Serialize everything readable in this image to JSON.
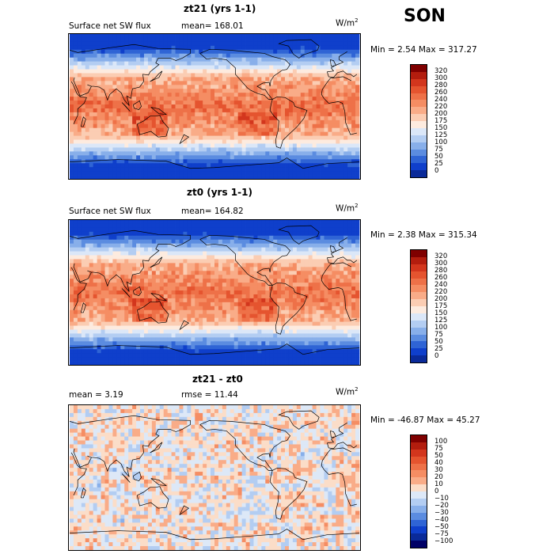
{
  "season": "SON",
  "panels": [
    {
      "title": "zt21 (yrs 1-1)",
      "left_label": "Surface net SW flux",
      "mean_text": "mean= 168.01",
      "unit": "W/m",
      "unit_exp": "2",
      "stats": "Min =    2.54 Max = 317.27",
      "colorbar": {
        "ticks": [
          "320",
          "300",
          "280",
          "260",
          "240",
          "220",
          "200",
          "175",
          "150",
          "125",
          "100",
          "75",
          "50",
          "25",
          "0"
        ],
        "colors": [
          "#7f0000",
          "#b31d0e",
          "#d3361d",
          "#e5542f",
          "#ee7148",
          "#f58d63",
          "#f9ac88",
          "#fbcdb3",
          "#fdebdf",
          "#dbe7f8",
          "#b3cdf2",
          "#88afea",
          "#5b8ce0",
          "#2f64d5",
          "#0f3fcb",
          "#0a2a99"
        ]
      },
      "style": "abs"
    },
    {
      "title": "zt0 (yrs 1-1)",
      "left_label": "Surface net SW flux",
      "mean_text": "mean= 164.82",
      "unit": "W/m",
      "unit_exp": "2",
      "stats": "Min =    2.38 Max = 315.34",
      "colorbar": {
        "ticks": [
          "320",
          "300",
          "280",
          "260",
          "240",
          "220",
          "200",
          "175",
          "150",
          "125",
          "100",
          "75",
          "50",
          "25",
          "0"
        ],
        "colors": [
          "#7f0000",
          "#b31d0e",
          "#d3361d",
          "#e5542f",
          "#ee7148",
          "#f58d63",
          "#f9ac88",
          "#fbcdb3",
          "#fdebdf",
          "#dbe7f8",
          "#b3cdf2",
          "#88afea",
          "#5b8ce0",
          "#2f64d5",
          "#0f3fcb",
          "#0a2a99"
        ]
      },
      "style": "abs"
    },
    {
      "title": "zt21 - zt0",
      "left_label": "mean =    3.19",
      "mean_text": "rmse =   11.44",
      "unit": "W/m",
      "unit_exp": "2",
      "stats": "Min = -46.87 Max =  45.27",
      "colorbar": {
        "ticks": [
          "100",
          "75",
          "50",
          "40",
          "30",
          "20",
          "10",
          "0",
          "−10",
          "−20",
          "−30",
          "−40",
          "−50",
          "−75",
          "−100"
        ],
        "colors": [
          "#7f0000",
          "#b31d0e",
          "#d3361d",
          "#e5542f",
          "#ee7148",
          "#f58d63",
          "#f9ac88",
          "#fbddc8",
          "#dde8f7",
          "#b3cdf2",
          "#88afea",
          "#5b8ce0",
          "#2f64d5",
          "#0f3fcb",
          "#0a2a99",
          "#000066"
        ]
      },
      "style": "diff"
    }
  ]
}
